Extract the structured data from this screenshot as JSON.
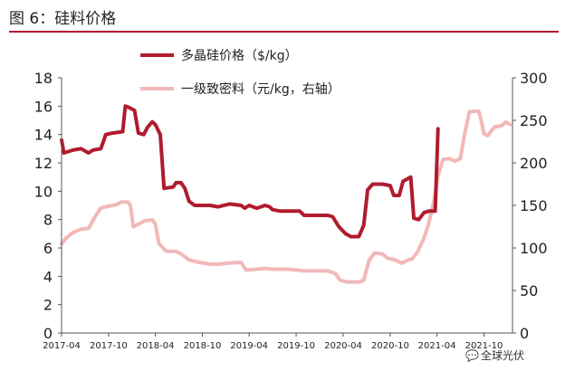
{
  "figure": {
    "caption": "图 6：硅料价格"
  },
  "watermark": {
    "text": "全球光伏",
    "icon": "wechat-bubble-icon"
  },
  "chart_data": {
    "type": "line",
    "title": "",
    "x_ticks": [
      "2017-04",
      "2017-10",
      "2018-04",
      "2018-10",
      "2019-04",
      "2019-10",
      "2020-04",
      "2020-10",
      "2021-04",
      "2021-10"
    ],
    "y_left": {
      "range": [
        0,
        18
      ],
      "ticks": [
        "0",
        "2",
        "4",
        "6",
        "8",
        "10",
        "12",
        "14",
        "16",
        "18"
      ]
    },
    "y_right": {
      "range": [
        0,
        300
      ],
      "ticks": [
        "0",
        "50",
        "100",
        "150",
        "200",
        "250",
        "300"
      ]
    },
    "grid": false,
    "legend_position": "top-center",
    "series": [
      {
        "name": "多晶硅价格（$/kg）",
        "axis": "left",
        "color": "#b01c2e",
        "points": [
          [
            "2017-04-01",
            13.6
          ],
          [
            "2017-04-10",
            12.7
          ],
          [
            "2017-05-15",
            12.9
          ],
          [
            "2017-06-15",
            13.0
          ],
          [
            "2017-07-15",
            12.7
          ],
          [
            "2017-08-01",
            12.9
          ],
          [
            "2017-09-01",
            13.0
          ],
          [
            "2017-09-20",
            14.0
          ],
          [
            "2017-10-15",
            14.1
          ],
          [
            "2017-11-25",
            14.2
          ],
          [
            "2017-12-05",
            16.0
          ],
          [
            "2017-12-20",
            15.9
          ],
          [
            "2018-01-10",
            15.7
          ],
          [
            "2018-01-25",
            14.1
          ],
          [
            "2018-02-15",
            14.0
          ],
          [
            "2018-03-01",
            14.5
          ],
          [
            "2018-03-20",
            14.9
          ],
          [
            "2018-04-01",
            14.7
          ],
          [
            "2018-04-20",
            14.0
          ],
          [
            "2018-05-05",
            10.2
          ],
          [
            "2018-06-10",
            10.3
          ],
          [
            "2018-06-20",
            10.6
          ],
          [
            "2018-07-10",
            10.6
          ],
          [
            "2018-07-25",
            10.2
          ],
          [
            "2018-08-10",
            9.3
          ],
          [
            "2018-09-01",
            9.0
          ],
          [
            "2018-11-01",
            9.0
          ],
          [
            "2018-12-01",
            8.9
          ],
          [
            "2019-01-15",
            9.1
          ],
          [
            "2019-03-01",
            9.0
          ],
          [
            "2019-03-15",
            8.8
          ],
          [
            "2019-04-01",
            9.0
          ],
          [
            "2019-05-01",
            8.8
          ],
          [
            "2019-06-01",
            9.0
          ],
          [
            "2019-06-20",
            8.9
          ],
          [
            "2019-07-01",
            8.7
          ],
          [
            "2019-08-01",
            8.6
          ],
          [
            "2019-10-15",
            8.6
          ],
          [
            "2019-11-01",
            8.3
          ],
          [
            "2020-02-01",
            8.3
          ],
          [
            "2020-02-20",
            8.2
          ],
          [
            "2020-03-15",
            7.5
          ],
          [
            "2020-04-10",
            7.0
          ],
          [
            "2020-05-01",
            6.8
          ],
          [
            "2020-06-01",
            6.8
          ],
          [
            "2020-06-20",
            7.6
          ],
          [
            "2020-07-05",
            10.1
          ],
          [
            "2020-07-25",
            10.5
          ],
          [
            "2020-09-01",
            10.5
          ],
          [
            "2020-10-01",
            10.4
          ],
          [
            "2020-10-15",
            9.7
          ],
          [
            "2020-11-05",
            9.7
          ],
          [
            "2020-11-20",
            10.7
          ],
          [
            "2020-12-10",
            10.9
          ],
          [
            "2020-12-20",
            11.0
          ],
          [
            "2021-01-01",
            8.1
          ],
          [
            "2021-01-20",
            8.0
          ],
          [
            "2021-02-10",
            8.5
          ],
          [
            "2021-03-01",
            8.6
          ],
          [
            "2021-03-25",
            8.6
          ],
          [
            "2021-04-05",
            14.4
          ]
        ]
      },
      {
        "name": "一级致密料（元/kg，右轴）",
        "axis": "right",
        "color": "#f2b8b8",
        "points": [
          [
            "2017-04-01",
            105
          ],
          [
            "2017-04-20",
            112
          ],
          [
            "2017-05-15",
            118
          ],
          [
            "2017-06-15",
            122
          ],
          [
            "2017-07-15",
            123
          ],
          [
            "2017-08-10",
            137
          ],
          [
            "2017-09-01",
            147
          ],
          [
            "2017-10-01",
            149
          ],
          [
            "2017-11-01",
            151
          ],
          [
            "2017-11-20",
            154
          ],
          [
            "2017-12-15",
            154
          ],
          [
            "2017-12-25",
            150
          ],
          [
            "2018-01-05",
            125
          ],
          [
            "2018-01-25",
            128
          ],
          [
            "2018-02-20",
            132
          ],
          [
            "2018-03-20",
            133
          ],
          [
            "2018-04-01",
            128
          ],
          [
            "2018-04-15",
            105
          ],
          [
            "2018-05-10",
            97
          ],
          [
            "2018-05-20",
            96
          ],
          [
            "2018-06-20",
            96
          ],
          [
            "2018-07-10",
            93
          ],
          [
            "2018-08-10",
            86
          ],
          [
            "2018-09-20",
            83
          ],
          [
            "2018-11-01",
            81
          ],
          [
            "2018-12-10",
            81
          ],
          [
            "2019-01-01",
            82
          ],
          [
            "2019-03-01",
            83
          ],
          [
            "2019-03-20",
            74
          ],
          [
            "2019-05-01",
            75
          ],
          [
            "2019-06-01",
            76
          ],
          [
            "2019-07-01",
            75
          ],
          [
            "2019-09-01",
            75
          ],
          [
            "2019-10-01",
            74
          ],
          [
            "2019-11-01",
            73
          ],
          [
            "2020-02-01",
            73
          ],
          [
            "2020-03-01",
            70
          ],
          [
            "2020-03-20",
            62
          ],
          [
            "2020-04-15",
            60
          ],
          [
            "2020-06-01",
            60
          ],
          [
            "2020-06-20",
            62
          ],
          [
            "2020-07-10",
            85
          ],
          [
            "2020-08-01",
            94
          ],
          [
            "2020-09-01",
            93
          ],
          [
            "2020-09-20",
            88
          ],
          [
            "2020-10-20",
            86
          ],
          [
            "2020-11-15",
            82
          ],
          [
            "2020-12-10",
            86
          ],
          [
            "2020-12-25",
            87
          ],
          [
            "2021-01-15",
            95
          ],
          [
            "2021-02-10",
            112
          ],
          [
            "2021-03-01",
            130
          ],
          [
            "2021-03-20",
            155
          ],
          [
            "2021-04-05",
            185
          ],
          [
            "2021-04-25",
            204
          ],
          [
            "2021-05-20",
            205
          ],
          [
            "2021-06-10",
            202
          ],
          [
            "2021-07-01",
            205
          ],
          [
            "2021-07-15",
            230
          ],
          [
            "2021-08-05",
            260
          ],
          [
            "2021-09-10",
            261
          ],
          [
            "2021-09-20",
            250
          ],
          [
            "2021-10-01",
            234
          ],
          [
            "2021-10-15",
            232
          ],
          [
            "2021-11-10",
            242
          ],
          [
            "2021-12-10",
            244
          ],
          [
            "2021-12-25",
            248
          ],
          [
            "2022-01-10",
            245
          ]
        ]
      }
    ]
  }
}
